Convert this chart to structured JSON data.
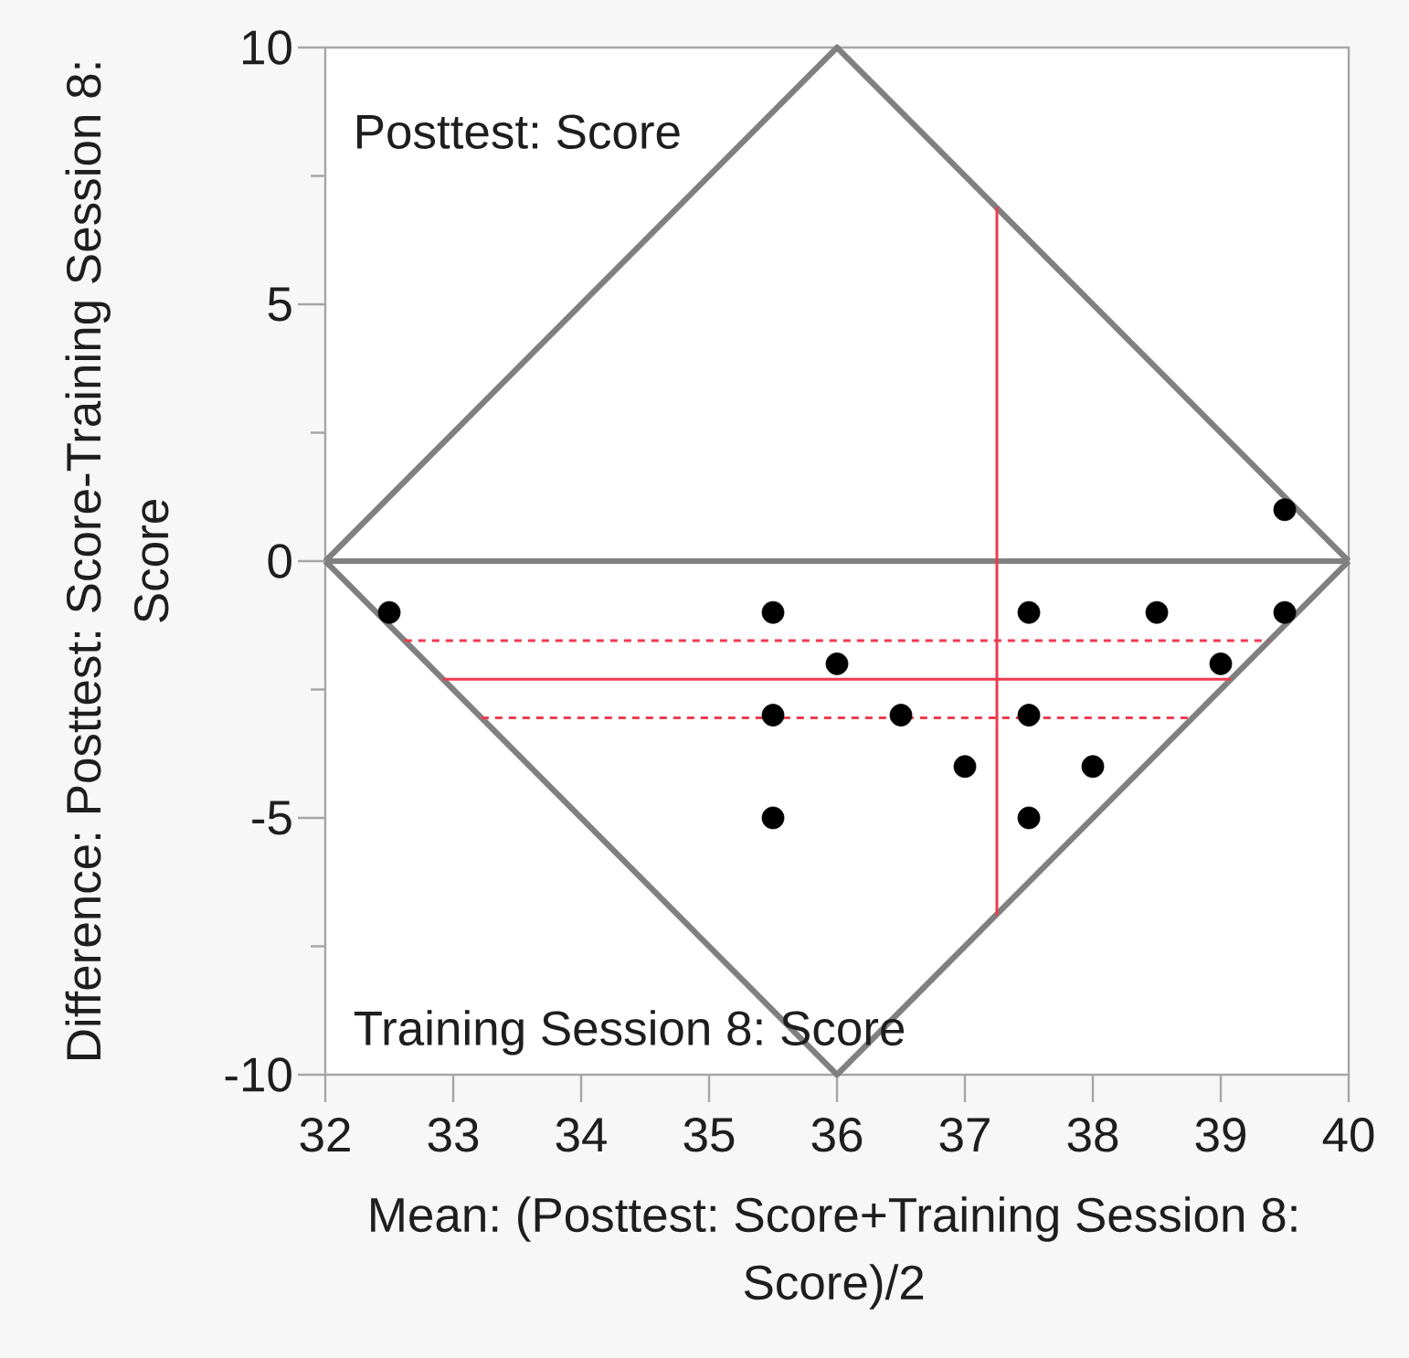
{
  "chart_data": {
    "type": "scatter",
    "xlabel": "Mean: (Posttest: Score+Training Session 8: Score)/2",
    "ylabel": "Difference: Posttest: Score-Training Session 8: Score",
    "annotations": [
      "Posttest: Score",
      "Training Session 8: Score"
    ],
    "xlim": [
      32,
      40
    ],
    "xticks": [
      32,
      33,
      34,
      35,
      36,
      37,
      38,
      39,
      40
    ],
    "ylim": [
      -10,
      10
    ],
    "yticks": [
      -10,
      {
        "value": -7.5,
        "label": null
      },
      -5,
      {
        "value": -2.5,
        "label": null
      },
      0,
      {
        "value": 2.5,
        "label": null
      },
      5,
      {
        "value": 7.5,
        "label": null
      },
      10
    ],
    "ref_lines": [
      {
        "axis": "y",
        "value": 0,
        "color": "#808080"
      }
    ],
    "series": [
      {
        "color": "#000000",
        "marker": "circle",
        "x": [
          32.5,
          35.5,
          35.5,
          35.5,
          36,
          36.5,
          37,
          37.5,
          37.5,
          37.5,
          38,
          38.5,
          39,
          39.5,
          39.5
        ],
        "values": [
          -1,
          -1,
          -3,
          -5,
          -2,
          -3,
          -4,
          -1,
          -3,
          -5,
          -4,
          -1,
          -2,
          1,
          -1
        ]
      },
      {
        "type": "line",
        "color": "#808080",
        "x": [
          32,
          36,
          40
        ],
        "values": [
          0,
          10,
          0
        ]
      },
      {
        "type": "line",
        "color": "#808080",
        "x": [
          32,
          36,
          40
        ],
        "values": [
          0,
          -10,
          0
        ]
      },
      {
        "type": "line",
        "color": "#ee3b4f",
        "line_style": "solid",
        "x": [
          32.92,
          39.08
        ],
        "values": [
          -2.3,
          -2.3
        ]
      },
      {
        "type": "line",
        "color": "#ee3b4f",
        "line_style": "dashed",
        "x": [
          32.62,
          39.38
        ],
        "values": [
          -1.55,
          -1.55
        ]
      },
      {
        "type": "line",
        "color": "#ee3b4f",
        "line_style": "dashed",
        "x": [
          33.22,
          38.78
        ],
        "values": [
          -3.05,
          -3.05
        ]
      },
      {
        "type": "line",
        "color": "#ee3b4f",
        "line_style": "solid",
        "x": [
          37.25,
          37.25
        ],
        "values": [
          6.9,
          -6.9
        ]
      }
    ]
  }
}
